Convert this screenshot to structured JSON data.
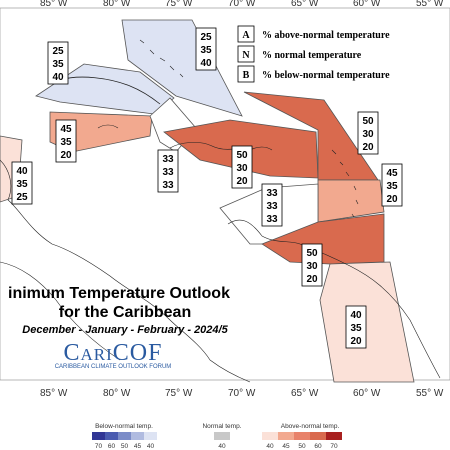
{
  "map": {
    "longitude_labels": [
      "85° W",
      "80° W",
      "75° W",
      "70° W",
      "65° W",
      "60° W",
      "55° W"
    ],
    "key": [
      {
        "letter": "A",
        "text": "% above-normal temperature"
      },
      {
        "letter": "N",
        "text": "% normal temperature"
      },
      {
        "letter": "B",
        "text": "% below-normal temperature"
      }
    ],
    "regions": [
      {
        "name": "bahamas",
        "values": [
          "25",
          "35",
          "40"
        ],
        "fill": "#dde3f3"
      },
      {
        "name": "cuba",
        "values": [
          "25",
          "35",
          "40"
        ],
        "fill": "#dde3f3"
      },
      {
        "name": "jamaica",
        "values": [
          "45",
          "35",
          "20"
        ],
        "fill": "#f2a98f"
      },
      {
        "name": "haiti",
        "values": [
          "33",
          "33",
          "33"
        ],
        "fill": "#ffffff"
      },
      {
        "name": "hispaniola-puerto-rico",
        "values": [
          "50",
          "30",
          "20"
        ],
        "fill": "#d96a4e"
      },
      {
        "name": "leeward-islands",
        "values": [
          "50",
          "30",
          "20"
        ],
        "fill": "#d96a4e"
      },
      {
        "name": "windward-islands",
        "values": [
          "45",
          "35",
          "20"
        ],
        "fill": "#f2a98f"
      },
      {
        "name": "central-america",
        "values": [
          "40",
          "35",
          "25"
        ],
        "fill": "#fbe1d8"
      },
      {
        "name": "caribbean-sea",
        "values": [
          "33",
          "33",
          "33"
        ],
        "fill": "#ffffff"
      },
      {
        "name": "trinidad",
        "values": [
          "50",
          "30",
          "20"
        ],
        "fill": "#d96a4e"
      },
      {
        "name": "guianas",
        "values": [
          "40",
          "35",
          "20"
        ],
        "fill": "#fbe1d8"
      }
    ]
  },
  "title": {
    "line1": "inimum Temperature Outlook",
    "line2": "for the Caribbean",
    "line3": "December - January - February - 2024/5"
  },
  "logo": {
    "name": "CariCOF",
    "subtitle": "CARIBBEAN CLIMATE OUTLOOK FORUM"
  },
  "legend": {
    "below": {
      "label": "Below-normal temp.",
      "ticks": [
        "70",
        "60",
        "50",
        "45",
        "40"
      ],
      "colors": [
        "#313695",
        "#4a5bb0",
        "#7b8cc8",
        "#b0bbe0",
        "#dde3f3"
      ]
    },
    "normal": {
      "label": "Normal temp.",
      "ticks": [
        "40"
      ],
      "colors": [
        "#c8c8c8"
      ]
    },
    "above": {
      "label": "Above-normal temp.",
      "ticks": [
        "40",
        "45",
        "50",
        "60",
        "70"
      ],
      "colors": [
        "#fbe1d8",
        "#f2a98f",
        "#e8826a",
        "#d96a4e",
        "#a8201f"
      ]
    }
  }
}
